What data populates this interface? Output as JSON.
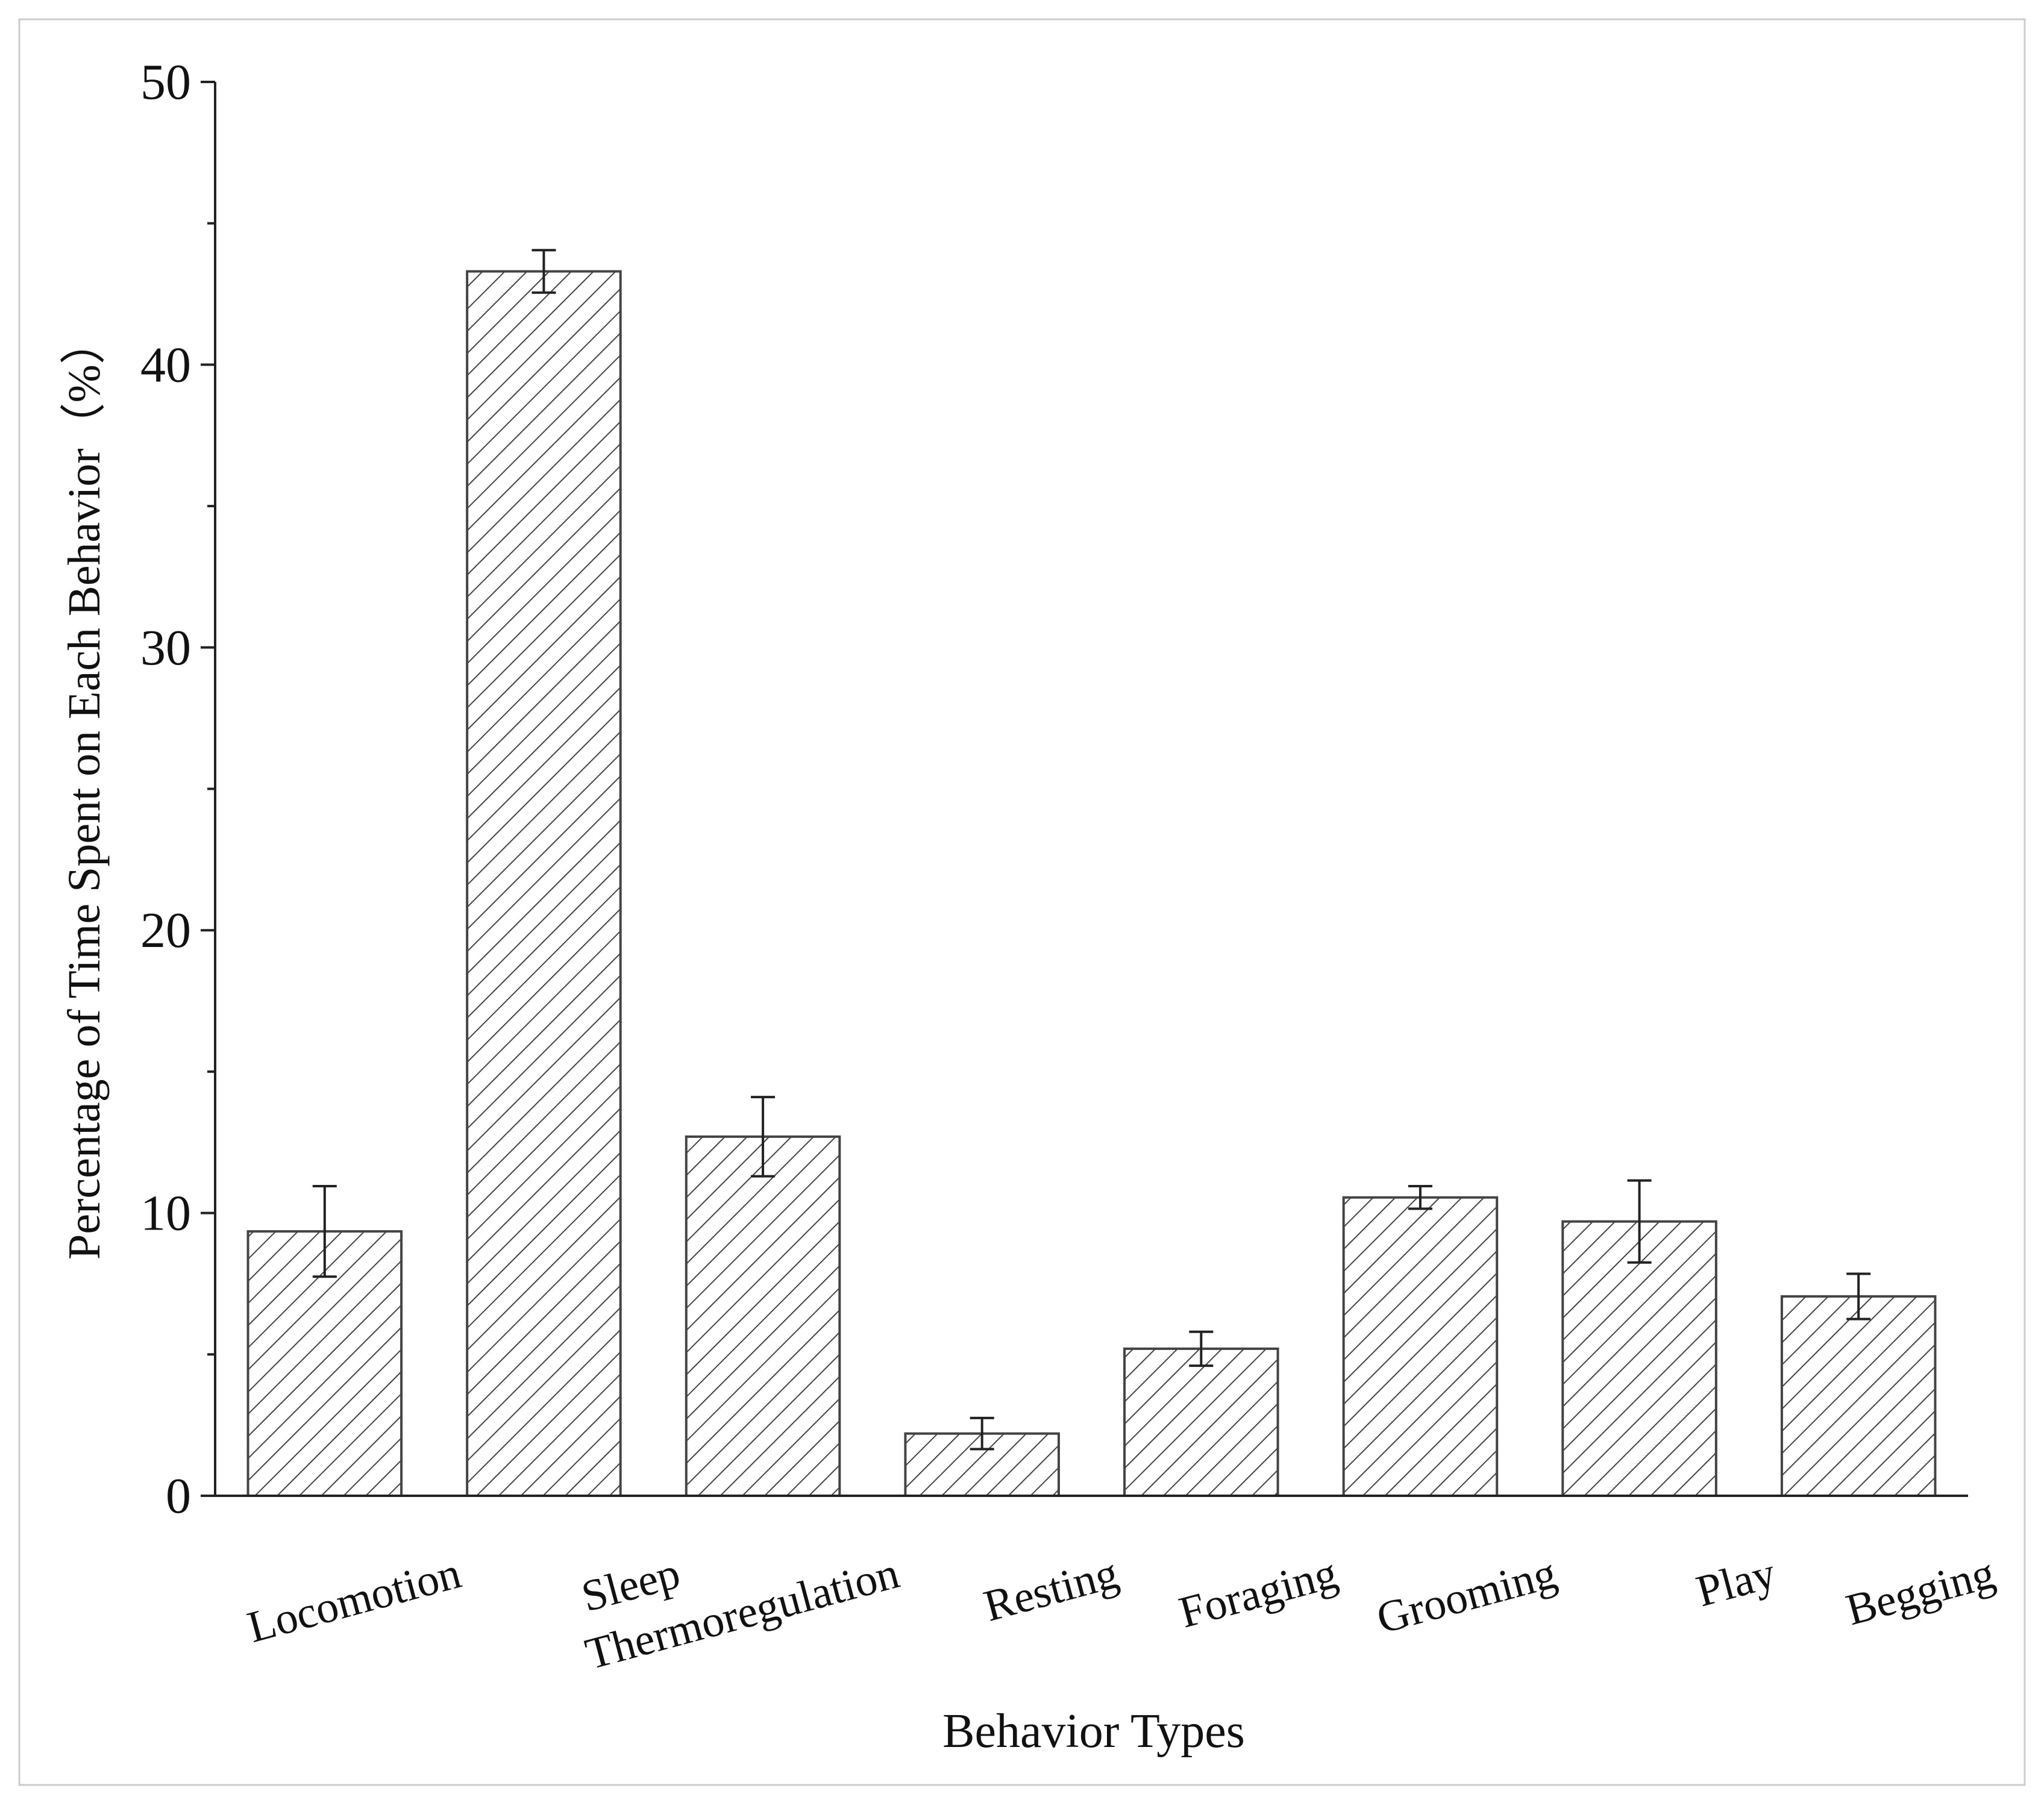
{
  "chart_data": {
    "type": "bar",
    "x_label": "Behavior Types",
    "y_label": "Percentage of Time Spent on Each Behavior（%）",
    "categories": [
      "Locomotion",
      "Sleep",
      "Thermoregulation",
      "Resting",
      "Foraging",
      "Grooming",
      "Play",
      "Begging"
    ],
    "values": [
      9.35,
      43.3,
      12.7,
      2.2,
      5.2,
      10.55,
      9.7,
      7.05
    ],
    "errors": [
      1.6,
      0.75,
      1.4,
      0.55,
      0.6,
      0.4,
      1.45,
      0.8
    ],
    "color": "#444444",
    "ylim": [
      0,
      50
    ],
    "yticks": [
      0,
      10,
      20,
      30,
      40,
      50
    ],
    "minor_yticks": [
      5,
      15,
      25,
      35,
      45
    ]
  }
}
